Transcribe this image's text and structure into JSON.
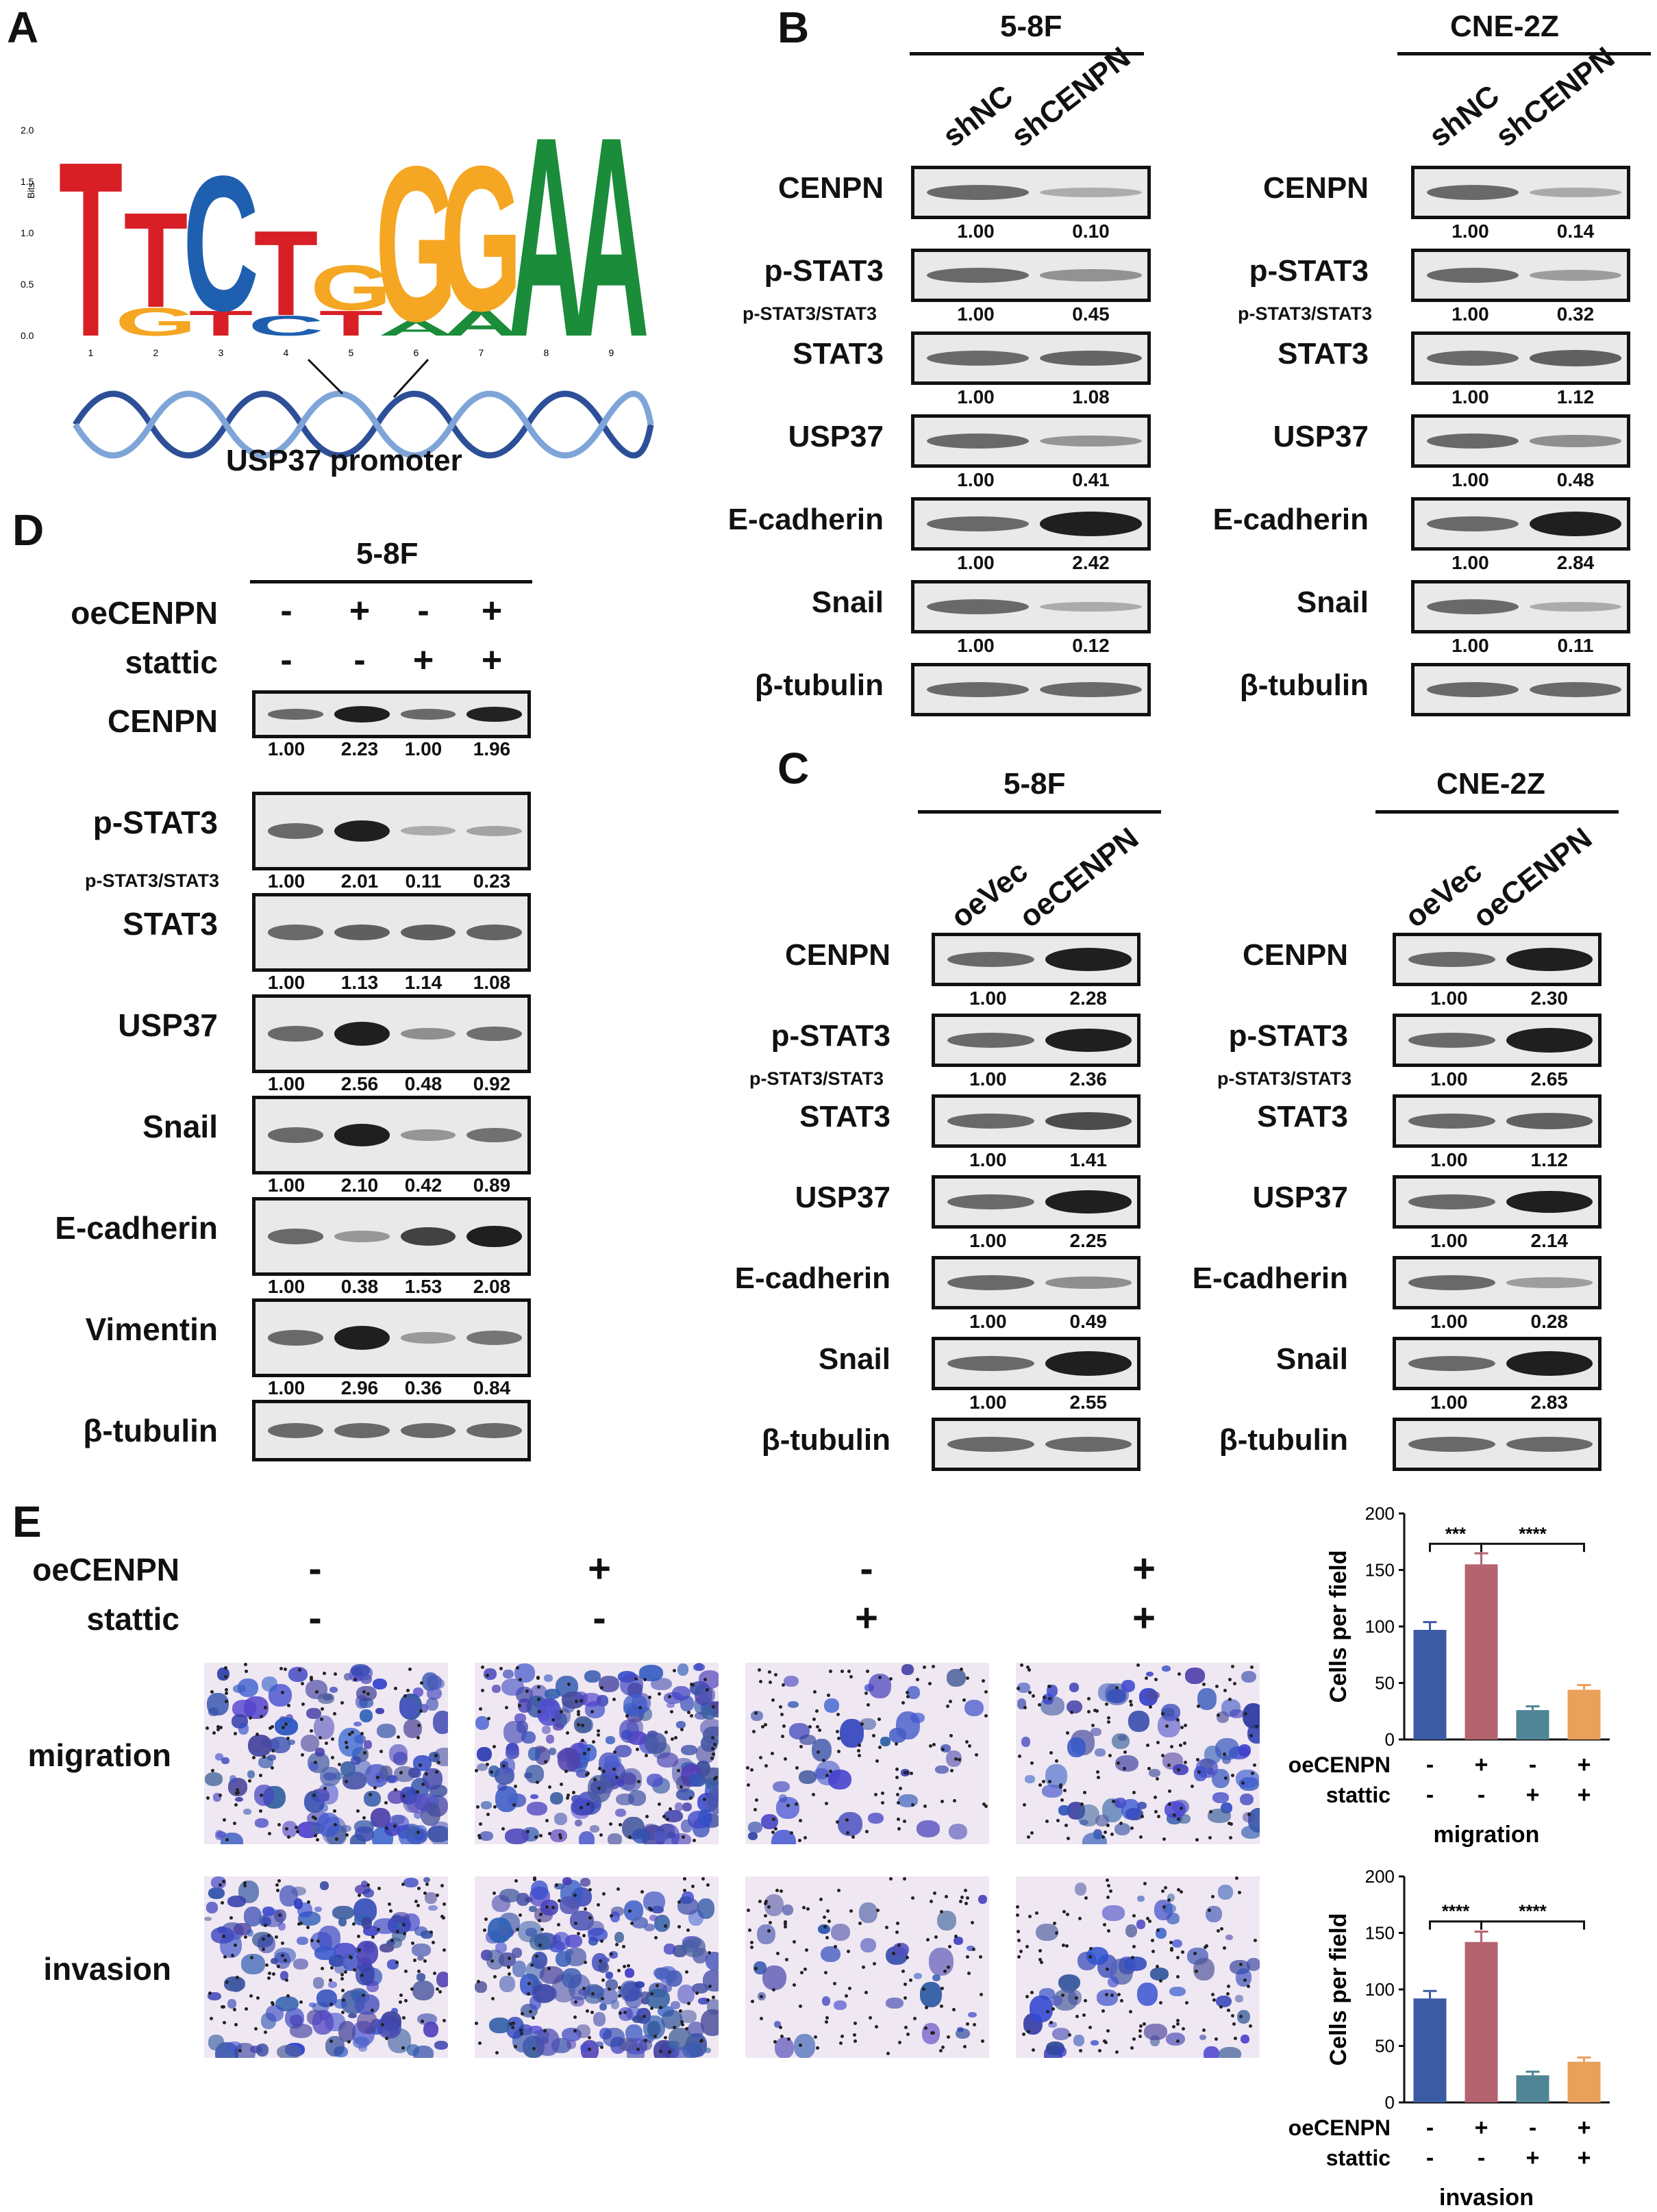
{
  "panels": {
    "A": "A",
    "B": "B",
    "C": "C",
    "D": "D",
    "E": "E"
  },
  "panel_a": {
    "yaxis_label": "Bits",
    "yticks": [
      "2.0",
      "1.5",
      "1.0",
      "0.5",
      "0.0"
    ],
    "xticks": [
      "1",
      "2",
      "3",
      "4",
      "5",
      "6",
      "7",
      "8",
      "9"
    ],
    "motif_letters": [
      {
        "pos": 1,
        "letter": "T",
        "color": "#d81f26",
        "height": 1.75
      },
      {
        "pos": 2,
        "letter": "T",
        "color": "#d81f26",
        "height": 0.95
      },
      {
        "pos": 2,
        "letter": "G",
        "color": "#f5a623",
        "height": 0.28
      },
      {
        "pos": 3,
        "letter": "C",
        "color": "#1f5fb0",
        "height": 1.35
      },
      {
        "pos": 3,
        "letter": "T",
        "color": "#d81f26",
        "height": 0.25
      },
      {
        "pos": 4,
        "letter": "T",
        "color": "#d81f26",
        "height": 0.85
      },
      {
        "pos": 4,
        "letter": "C",
        "color": "#1f5fb0",
        "height": 0.2
      },
      {
        "pos": 5,
        "letter": "G",
        "color": "#f5a623",
        "height": 0.45
      },
      {
        "pos": 5,
        "letter": "T",
        "color": "#d81f26",
        "height": 0.25
      },
      {
        "pos": 6,
        "letter": "G",
        "color": "#f5a623",
        "height": 1.55
      },
      {
        "pos": 6,
        "letter": "A",
        "color": "#1a8c3a",
        "height": 0.15
      },
      {
        "pos": 7,
        "letter": "G",
        "color": "#f5a623",
        "height": 1.45
      },
      {
        "pos": 7,
        "letter": "A",
        "color": "#1a8c3a",
        "height": 0.25
      },
      {
        "pos": 8,
        "letter": "A",
        "color": "#1a8c3a",
        "height": 2.0
      },
      {
        "pos": 9,
        "letter": "A",
        "color": "#1a8c3a",
        "height": 2.0
      }
    ],
    "caption": "USP37 promoter"
  },
  "panel_b": {
    "cell_lines": [
      "5-8F",
      "CNE-2Z"
    ],
    "lanes": [
      "shNC",
      "shCENPN"
    ],
    "subnote": "p-STAT3/STAT3",
    "rows": [
      {
        "label": "CENPN",
        "left": [
          "1.00",
          "0.10"
        ],
        "right": [
          "1.00",
          "0.14"
        ]
      },
      {
        "label": "p-STAT3",
        "left": [
          "1.00",
          "0.45"
        ],
        "right": [
          "1.00",
          "0.32"
        ]
      },
      {
        "label": "STAT3",
        "left": [
          "1.00",
          "1.08"
        ],
        "right": [
          "1.00",
          "1.12"
        ]
      },
      {
        "label": "USP37",
        "left": [
          "1.00",
          "0.41"
        ],
        "right": [
          "1.00",
          "0.48"
        ]
      },
      {
        "label": "E-cadherin",
        "left": [
          "1.00",
          "2.42"
        ],
        "right": [
          "1.00",
          "2.84"
        ]
      },
      {
        "label": "Snail",
        "left": [
          "1.00",
          "0.12"
        ],
        "right": [
          "1.00",
          "0.11"
        ]
      },
      {
        "label": "β-tubulin",
        "left": [],
        "right": []
      }
    ]
  },
  "panel_c": {
    "cell_lines": [
      "5-8F",
      "CNE-2Z"
    ],
    "lanes": [
      "oeVec",
      "oeCENPN"
    ],
    "subnote": "p-STAT3/STAT3",
    "rows": [
      {
        "label": "CENPN",
        "left": [
          "1.00",
          "2.28"
        ],
        "right": [
          "1.00",
          "2.30"
        ]
      },
      {
        "label": "p-STAT3",
        "left": [
          "1.00",
          "2.36"
        ],
        "right": [
          "1.00",
          "2.65"
        ]
      },
      {
        "label": "STAT3",
        "left": [
          "1.00",
          "1.41"
        ],
        "right": [
          "1.00",
          "1.12"
        ]
      },
      {
        "label": "USP37",
        "left": [
          "1.00",
          "2.25"
        ],
        "right": [
          "1.00",
          "2.14"
        ]
      },
      {
        "label": "E-cadherin",
        "left": [
          "1.00",
          "0.49"
        ],
        "right": [
          "1.00",
          "0.28"
        ]
      },
      {
        "label": "Snail",
        "left": [
          "1.00",
          "2.55"
        ],
        "right": [
          "1.00",
          "2.83"
        ]
      },
      {
        "label": "β-tubulin",
        "left": [],
        "right": []
      }
    ]
  },
  "panel_d": {
    "cell_line": "5-8F",
    "treatments": [
      {
        "label": "oeCENPN",
        "signs": [
          "-",
          "+",
          "-",
          "+"
        ]
      },
      {
        "label": "stattic",
        "signs": [
          "-",
          "-",
          "+",
          "+"
        ]
      }
    ],
    "subnote": "p-STAT3/STAT3",
    "rows": [
      {
        "label": "CENPN",
        "vals": [
          "1.00",
          "2.23",
          "1.00",
          "1.96"
        ]
      },
      {
        "label": "p-STAT3",
        "vals": [
          "1.00",
          "2.01",
          "0.11",
          "0.23"
        ]
      },
      {
        "label": "STAT3",
        "vals": [
          "1.00",
          "1.13",
          "1.14",
          "1.08"
        ]
      },
      {
        "label": "USP37",
        "vals": [
          "1.00",
          "2.56",
          "0.48",
          "0.92"
        ]
      },
      {
        "label": "Snail",
        "vals": [
          "1.00",
          "2.10",
          "0.42",
          "0.89"
        ]
      },
      {
        "label": "E-cadherin",
        "vals": [
          "1.00",
          "0.38",
          "1.53",
          "2.08"
        ]
      },
      {
        "label": "Vimentin",
        "vals": [
          "1.00",
          "2.96",
          "0.36",
          "0.84"
        ]
      },
      {
        "label": "β-tubulin",
        "vals": []
      }
    ]
  },
  "panel_e": {
    "treatments": [
      {
        "label": "oeCENPN",
        "signs": [
          "-",
          "+",
          "-",
          "+"
        ]
      },
      {
        "label": "stattic",
        "signs": [
          "-",
          "-",
          "+",
          "+"
        ]
      }
    ],
    "row_labels": [
      "migration",
      "invasion"
    ]
  },
  "chart_data": [
    {
      "type": "bar",
      "title": "",
      "xlabel": "migration",
      "ylabel": "Cells per field",
      "ylim": [
        0,
        200
      ],
      "yticks": [
        "0",
        "50",
        "100",
        "150",
        "200"
      ],
      "categories": [
        "oeCENPN - / stattic -",
        "oeCENPN + / stattic -",
        "oeCENPN - / stattic +",
        "oeCENPN + / stattic +"
      ],
      "values": [
        97,
        155,
        26,
        44
      ],
      "colors": [
        "#3b5ba5",
        "#b5636f",
        "#4f8595",
        "#e9a05a"
      ],
      "treat_rows": [
        {
          "label": "oeCENPN",
          "signs": [
            "-",
            "+",
            "-",
            "+"
          ]
        },
        {
          "label": "stattic",
          "signs": [
            "-",
            "-",
            "+",
            "+"
          ]
        }
      ],
      "significance": [
        {
          "from": 0,
          "to": 1,
          "label": "***"
        },
        {
          "from": 1,
          "to": 3,
          "label": "****"
        }
      ]
    },
    {
      "type": "bar",
      "title": "",
      "xlabel": "invasion",
      "ylabel": "Cells per field",
      "ylim": [
        0,
        200
      ],
      "yticks": [
        "0",
        "50",
        "100",
        "150",
        "200"
      ],
      "categories": [
        "oeCENPN - / stattic -",
        "oeCENPN + / stattic -",
        "oeCENPN - / stattic +",
        "oeCENPN + / stattic +"
      ],
      "values": [
        92,
        142,
        24,
        36
      ],
      "colors": [
        "#3b5ba5",
        "#b5636f",
        "#4f8595",
        "#e9a05a"
      ],
      "treat_rows": [
        {
          "label": "oeCENPN",
          "signs": [
            "-",
            "+",
            "-",
            "+"
          ]
        },
        {
          "label": "stattic",
          "signs": [
            "-",
            "-",
            "+",
            "+"
          ]
        }
      ],
      "significance": [
        {
          "from": 0,
          "to": 1,
          "label": "****"
        },
        {
          "from": 1,
          "to": 3,
          "label": "****"
        }
      ]
    }
  ]
}
